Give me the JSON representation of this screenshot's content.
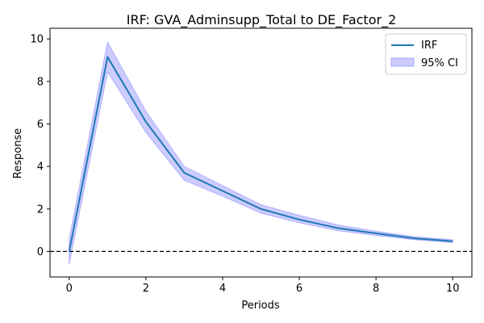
{
  "chart_data": {
    "type": "line",
    "title": "IRF: GVA_Adminsupp_Total to DE_Factor_2",
    "xlabel": "Periods",
    "ylabel": "Response",
    "xlim": [
      -0.5,
      10.5
    ],
    "ylim": [
      -1.2,
      10.5
    ],
    "xticks": [
      0,
      2,
      4,
      6,
      8,
      10
    ],
    "yticks": [
      0,
      2,
      4,
      6,
      8,
      10
    ],
    "x": [
      0,
      1,
      2,
      3,
      4,
      5,
      6,
      7,
      8,
      9,
      10
    ],
    "series": [
      {
        "name": "IRF",
        "color": "#1f77b4",
        "values": [
          0.0,
          9.15,
          6.1,
          3.7,
          2.85,
          2.0,
          1.5,
          1.1,
          0.85,
          0.62,
          0.48
        ]
      }
    ],
    "ci": {
      "name": "95% CI",
      "color": "#8080ff",
      "lower": [
        -0.6,
        8.45,
        5.6,
        3.35,
        2.6,
        1.8,
        1.35,
        0.98,
        0.75,
        0.55,
        0.42
      ],
      "upper": [
        0.6,
        9.85,
        6.6,
        4.0,
        3.1,
        2.2,
        1.7,
        1.25,
        0.95,
        0.7,
        0.55
      ]
    },
    "reference_line": {
      "y": 0,
      "style": "dashed",
      "color": "#000000"
    },
    "legend": {
      "position": "top-right",
      "entries": [
        "IRF",
        "95% CI"
      ]
    },
    "grid": false
  }
}
